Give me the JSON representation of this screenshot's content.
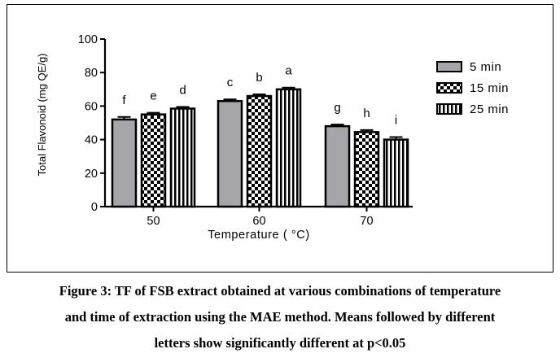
{
  "chart_data": {
    "type": "bar",
    "title": "",
    "xlabel": "Temperature ( °C)",
    "ylabel": "Total Flavonoid (mg QE/g)",
    "ylim": [
      0,
      100
    ],
    "yticks": [
      "0",
      "20",
      "40",
      "60",
      "80",
      "100"
    ],
    "categories": [
      "50",
      "60",
      "70"
    ],
    "series": [
      {
        "name": "5 min",
        "pattern": "solid-gray",
        "values": [
          52,
          63,
          48
        ],
        "errors": [
          1.5,
          1,
          1
        ],
        "letters": [
          "f",
          "c",
          "g"
        ]
      },
      {
        "name": "15 min",
        "pattern": "checker",
        "values": [
          55,
          66,
          44.5
        ],
        "errors": [
          1,
          1,
          1.2
        ],
        "letters": [
          "e",
          "b",
          "h"
        ]
      },
      {
        "name": "25 min",
        "pattern": "vertical-stripes",
        "values": [
          58.5,
          70,
          40
        ],
        "errors": [
          1,
          1,
          1.5
        ],
        "letters": [
          "d",
          "a",
          "i"
        ]
      }
    ],
    "legend_position": "right",
    "colors": {
      "bar_fill": "#a6a6aa",
      "ink": "#000000"
    }
  },
  "caption": {
    "line1": "Figure 3: TF of FSB extract obtained at various combinations of temperature",
    "line2": "and time of extraction using the MAE method. Means followed by different",
    "line3": "letters show significantly different at p<0.05"
  }
}
